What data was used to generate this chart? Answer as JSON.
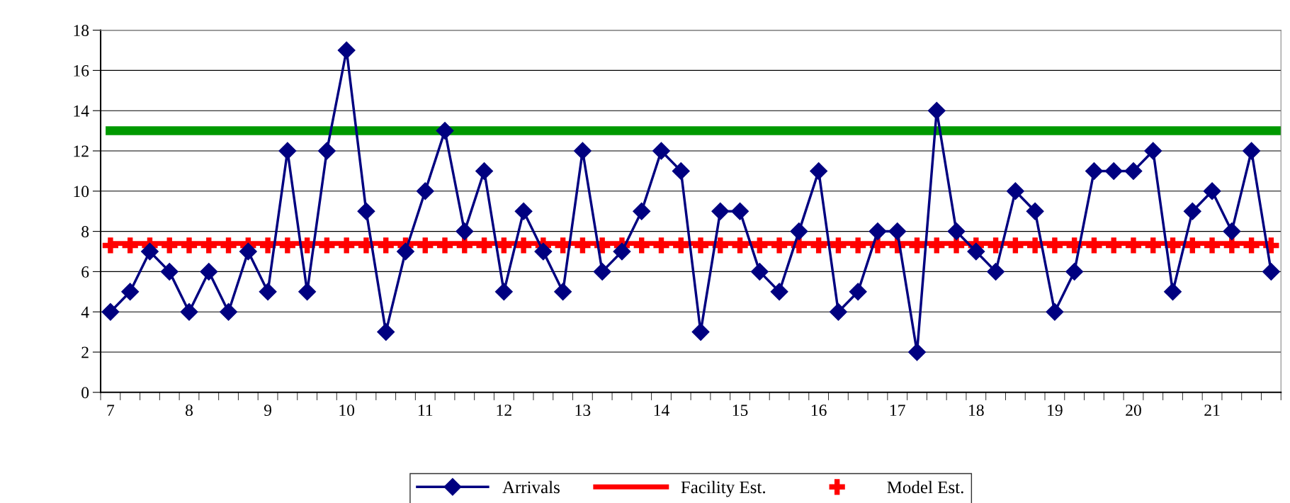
{
  "chart_data": {
    "type": "line",
    "categories": [
      "7",
      null,
      null,
      null,
      "8",
      null,
      null,
      null,
      "9",
      null,
      null,
      null,
      "10",
      null,
      null,
      null,
      "11",
      null,
      null,
      null,
      "12",
      null,
      null,
      null,
      "13",
      null,
      null,
      null,
      "14",
      null,
      null,
      null,
      "15",
      null,
      null,
      null,
      "16",
      null,
      null,
      null,
      "17",
      null,
      null,
      null,
      "18",
      null,
      null,
      null,
      "19",
      null,
      null,
      null,
      "20",
      null,
      null,
      null,
      "21",
      null,
      null,
      null
    ],
    "series": [
      {
        "name": "Arrivals",
        "color": "#000080",
        "marker": "diamond",
        "values": [
          4,
          5,
          7,
          6,
          4,
          6,
          4,
          7,
          5,
          12,
          5,
          12,
          17,
          9,
          3,
          7,
          10,
          13,
          8,
          11,
          5,
          9,
          7,
          5,
          12,
          6,
          7,
          9,
          12,
          11,
          3,
          9,
          9,
          6,
          5,
          8,
          11,
          4,
          5,
          8,
          8,
          2,
          14,
          8,
          7,
          6,
          10,
          9,
          4,
          6,
          11,
          11,
          11,
          12,
          5,
          9,
          10,
          8,
          12,
          6
        ]
      },
      {
        "name": "Facility Est.",
        "color": "#ff0000",
        "marker": "none",
        "values": [
          7.4,
          7.4,
          7.4,
          7.4,
          7.4,
          7.4,
          7.4,
          7.4,
          7.4,
          7.4,
          7.4,
          7.4,
          7.4,
          7.4,
          7.4,
          7.4,
          7.4,
          7.4,
          7.4,
          7.4,
          7.4,
          7.4,
          7.4,
          7.4,
          7.4,
          7.4,
          7.4,
          7.4,
          7.4,
          7.4,
          7.4,
          7.4,
          7.4,
          7.4,
          7.4,
          7.4,
          7.4,
          7.4,
          7.4,
          7.4,
          7.4,
          7.4,
          7.4,
          7.4,
          7.4,
          7.4,
          7.4,
          7.4,
          7.4,
          7.4,
          7.4,
          7.4,
          7.4,
          7.4,
          7.4,
          7.4,
          7.4,
          7.4,
          7.4,
          7.4
        ]
      },
      {
        "name": "Model Est.",
        "color": "#ff0000",
        "type": "scatter",
        "marker": "cross",
        "values": [
          7.3,
          7.3,
          7.3,
          7.3,
          7.3,
          7.3,
          7.3,
          7.3,
          7.3,
          7.3,
          7.3,
          7.3,
          7.3,
          7.3,
          7.3,
          7.3,
          7.3,
          7.3,
          7.3,
          7.3,
          7.3,
          7.3,
          7.3,
          7.3,
          7.3,
          7.3,
          7.3,
          7.3,
          7.3,
          7.3,
          7.3,
          7.3,
          7.3,
          7.3,
          7.3,
          7.3,
          7.3,
          7.3,
          7.3,
          7.3,
          7.3,
          7.3,
          7.3,
          7.3,
          7.3,
          7.3,
          7.3,
          7.3,
          7.3,
          7.3,
          7.3,
          7.3,
          7.3,
          7.3,
          7.3,
          7.3,
          7.3,
          7.3,
          7.3,
          7.3
        ]
      }
    ],
    "ylim": [
      0,
      18
    ],
    "yticks": [
      0,
      2,
      4,
      6,
      8,
      10,
      12,
      14,
      16,
      18
    ],
    "ref_lines": [
      {
        "axis": "y",
        "value": 13,
        "color": "#009900"
      }
    ],
    "grid": "y",
    "legend": "bottom"
  }
}
